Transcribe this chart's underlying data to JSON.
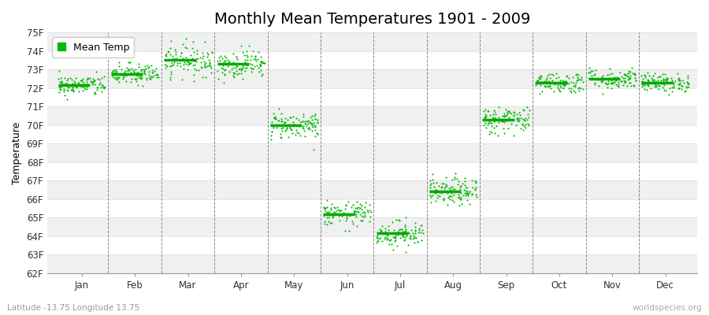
{
  "title": "Monthly Mean Temperatures 1901 - 2009",
  "ylabel": "Temperature",
  "xlabel_bottom": "Latitude -13.75 Longitude 13.75",
  "watermark": "worldspecies.org",
  "legend_label": "Mean Temp",
  "months": [
    "Jan",
    "Feb",
    "Mar",
    "Apr",
    "May",
    "Jun",
    "Jul",
    "Aug",
    "Sep",
    "Oct",
    "Nov",
    "Dec"
  ],
  "ylim": [
    62,
    75
  ],
  "yticks": [
    62,
    63,
    64,
    65,
    66,
    67,
    68,
    69,
    70,
    71,
    72,
    73,
    74,
    75
  ],
  "ytick_labels": [
    "62F",
    "63F",
    "64F",
    "65F",
    "66F",
    "67F",
    "68F",
    "69F",
    "70F",
    "71F",
    "72F",
    "73F",
    "74F",
    "75F"
  ],
  "mean_temps_F": [
    72.15,
    72.75,
    73.5,
    73.3,
    70.0,
    65.2,
    64.15,
    66.4,
    70.3,
    72.3,
    72.5,
    72.3
  ],
  "std_temps": [
    0.28,
    0.3,
    0.42,
    0.38,
    0.38,
    0.32,
    0.35,
    0.38,
    0.38,
    0.28,
    0.28,
    0.25
  ],
  "n_years": 109,
  "marker_color": "#00bb00",
  "mean_line_color": "#00aa00",
  "bg_color": "#ffffff",
  "band_color_odd": "#f0f0f0",
  "band_color_even": "#ffffff",
  "dashed_line_color": "#555555",
  "title_fontsize": 14,
  "label_fontsize": 9,
  "tick_fontsize": 8.5,
  "random_seed": 42
}
